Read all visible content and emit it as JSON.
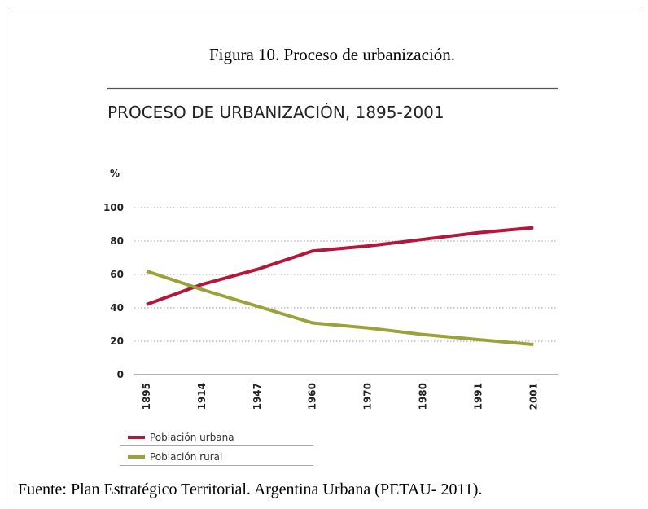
{
  "chart_data": {
    "type": "line",
    "caption": "Figura 10. Proceso de urbanización.",
    "title": "PROCESO DE URBANIZACIÓN, 1895-2001",
    "y_label": "%",
    "source": "Fuente: Plan Estratégico Territorial. Argentina Urbana (PETAU- 2011).",
    "categories": [
      "1895",
      "1914",
      "1947",
      "1960",
      "1970",
      "1980",
      "1991",
      "2001"
    ],
    "series": [
      {
        "name": "Población urbana",
        "color": "#b5163b",
        "values": [
          42,
          54,
          63,
          74,
          77,
          81,
          85,
          88
        ]
      },
      {
        "name": "Población rural",
        "color": "#9ba23b",
        "values": [
          62,
          51,
          41,
          31,
          28,
          24,
          21,
          18
        ]
      }
    ],
    "ylim": [
      0,
      100
    ],
    "yticks": [
      0,
      20,
      40,
      60,
      80,
      100
    ],
    "grid": true
  }
}
